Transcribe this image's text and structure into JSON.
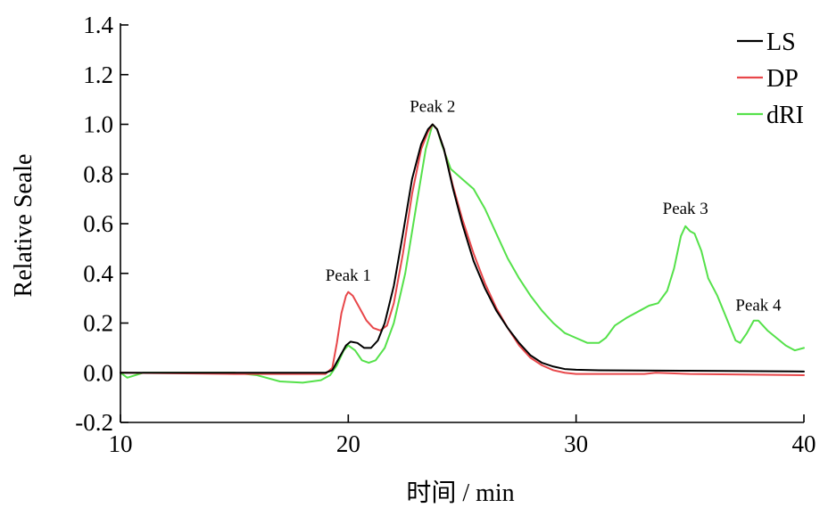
{
  "chart_data": {
    "type": "line",
    "xlabel": "时间 / min",
    "ylabel": "Relative Seale",
    "xlim": [
      10,
      40
    ],
    "ylim": [
      -0.2,
      1.4
    ],
    "x_ticks": [
      10,
      20,
      30,
      40
    ],
    "y_ticks": [
      -0.2,
      0.0,
      0.2,
      0.4,
      0.6,
      0.8,
      1.0,
      1.2,
      1.4
    ],
    "x_tick_labels": [
      "10",
      "20",
      "30",
      "40"
    ],
    "y_tick_labels": [
      "-0.2",
      "0.0",
      "0.2",
      "0.4",
      "0.6",
      "0.8",
      "1.0",
      "1.2",
      "1.4"
    ],
    "grid": false,
    "legend_position": "top-right",
    "annotations": [
      {
        "text": "Peak 1",
        "x": 20.0,
        "y": 0.37
      },
      {
        "text": "Peak 2",
        "x": 23.7,
        "y": 1.05
      },
      {
        "text": "Peak 3",
        "x": 34.8,
        "y": 0.64
      },
      {
        "text": "Peak 4",
        "x": 38.0,
        "y": 0.25
      }
    ],
    "series": [
      {
        "name": "LS",
        "color": "#000000",
        "x": [
          10.0,
          15.0,
          19.0,
          19.3,
          19.6,
          19.9,
          20.1,
          20.4,
          20.7,
          21.0,
          21.3,
          21.6,
          22.0,
          22.4,
          22.8,
          23.2,
          23.5,
          23.7,
          23.9,
          24.2,
          24.6,
          25.0,
          25.5,
          26.0,
          26.5,
          27.0,
          27.5,
          28.0,
          28.5,
          29.0,
          29.5,
          30.0,
          31.0,
          35.0,
          40.0
        ],
        "y": [
          0.0,
          0.0,
          0.0,
          0.01,
          0.06,
          0.11,
          0.125,
          0.12,
          0.1,
          0.1,
          0.13,
          0.2,
          0.35,
          0.56,
          0.78,
          0.92,
          0.98,
          1.0,
          0.98,
          0.9,
          0.74,
          0.6,
          0.45,
          0.34,
          0.25,
          0.18,
          0.12,
          0.07,
          0.04,
          0.025,
          0.015,
          0.012,
          0.01,
          0.008,
          0.005
        ]
      },
      {
        "name": "DP",
        "color": "#e8474a",
        "x": [
          10.0,
          15.0,
          19.0,
          19.3,
          19.5,
          19.7,
          19.9,
          20.0,
          20.2,
          20.5,
          20.8,
          21.1,
          21.4,
          21.7,
          22.0,
          22.4,
          22.8,
          23.2,
          23.5,
          23.7,
          23.9,
          24.2,
          24.6,
          25.0,
          25.5,
          26.0,
          26.5,
          27.0,
          27.5,
          28.0,
          28.5,
          29.0,
          29.5,
          30.0,
          31.0,
          33.0,
          33.5,
          35.0,
          40.0
        ],
        "y": [
          0.0,
          -0.005,
          -0.005,
          0.02,
          0.12,
          0.24,
          0.31,
          0.325,
          0.31,
          0.26,
          0.21,
          0.18,
          0.17,
          0.19,
          0.28,
          0.48,
          0.72,
          0.9,
          0.97,
          1.0,
          0.98,
          0.9,
          0.75,
          0.62,
          0.48,
          0.36,
          0.26,
          0.18,
          0.11,
          0.06,
          0.03,
          0.01,
          0.0,
          -0.005,
          -0.005,
          -0.005,
          0.0,
          -0.005,
          -0.01
        ]
      },
      {
        "name": "dRI",
        "color": "#55e14a",
        "x": [
          10.0,
          10.3,
          11.0,
          15.0,
          16.0,
          17.0,
          18.0,
          18.8,
          19.2,
          19.5,
          19.8,
          20.0,
          20.3,
          20.6,
          20.9,
          21.2,
          21.6,
          22.0,
          22.5,
          23.0,
          23.4,
          23.7,
          23.9,
          24.1,
          24.5,
          25.0,
          25.5,
          26.0,
          26.5,
          27.0,
          27.5,
          28.0,
          28.5,
          29.0,
          29.5,
          30.0,
          30.5,
          31.0,
          31.3,
          31.7,
          32.2,
          32.8,
          33.2,
          33.6,
          34.0,
          34.3,
          34.6,
          34.8,
          35.0,
          35.2,
          35.5,
          35.8,
          36.2,
          36.6,
          37.0,
          37.2,
          37.5,
          37.8,
          38.0,
          38.4,
          38.8,
          39.2,
          39.6,
          40.0
        ],
        "y": [
          0.0,
          -0.02,
          0.0,
          0.0,
          -0.01,
          -0.035,
          -0.04,
          -0.03,
          -0.01,
          0.03,
          0.09,
          0.11,
          0.09,
          0.05,
          0.04,
          0.05,
          0.1,
          0.2,
          0.4,
          0.68,
          0.9,
          1.0,
          0.98,
          0.92,
          0.82,
          0.78,
          0.74,
          0.66,
          0.56,
          0.46,
          0.38,
          0.31,
          0.25,
          0.2,
          0.16,
          0.14,
          0.12,
          0.12,
          0.14,
          0.19,
          0.22,
          0.25,
          0.27,
          0.28,
          0.33,
          0.42,
          0.55,
          0.59,
          0.57,
          0.56,
          0.49,
          0.38,
          0.31,
          0.22,
          0.13,
          0.12,
          0.16,
          0.21,
          0.21,
          0.17,
          0.14,
          0.11,
          0.09,
          0.1
        ]
      }
    ]
  }
}
